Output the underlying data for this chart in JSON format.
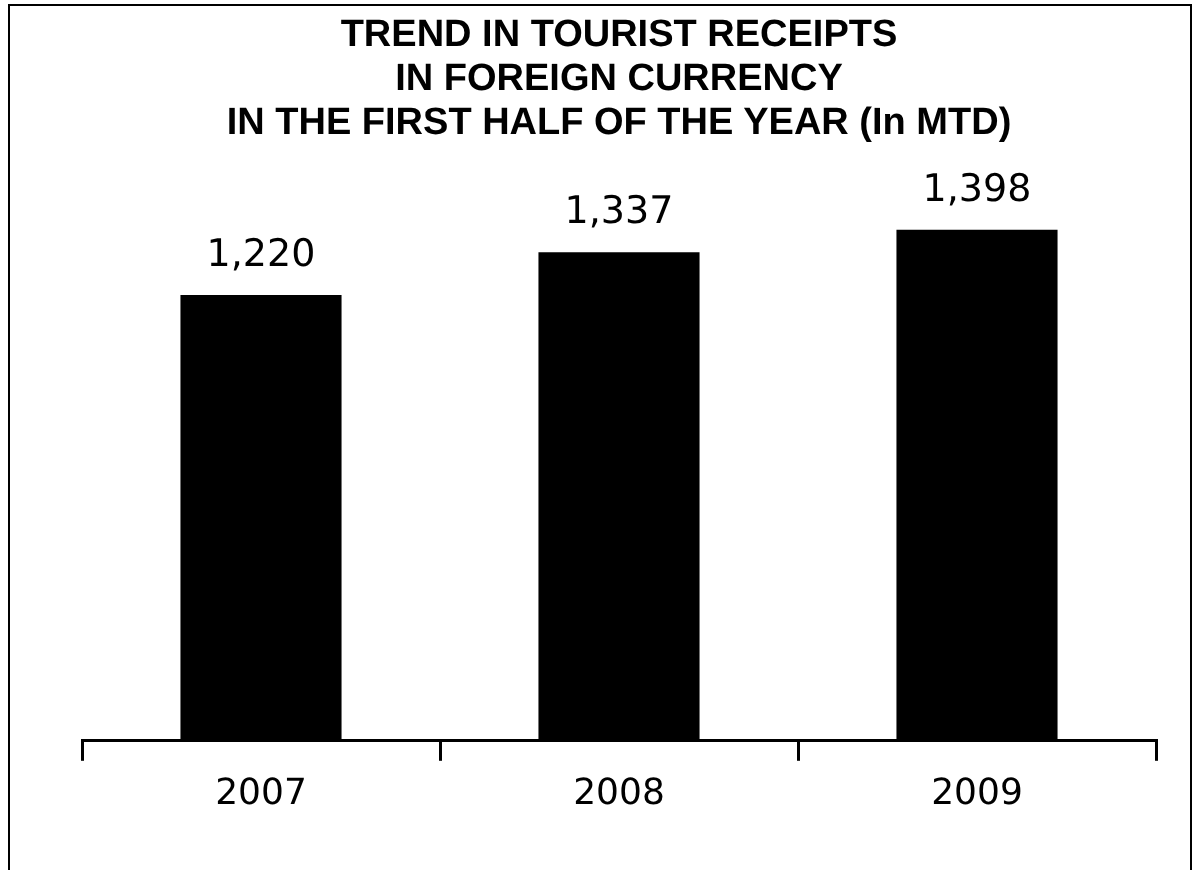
{
  "chart_data": {
    "type": "bar",
    "title": "TREND IN TOURIST RECEIPTS\nIN FOREIGN CURRENCY\nIN THE FIRST HALF OF THE YEAR (In MTD)",
    "categories": [
      "2007",
      "2008",
      "2009"
    ],
    "values": [
      1220,
      1337,
      1398
    ],
    "value_labels": [
      "1,220",
      "1,337",
      "1,398"
    ],
    "color": "#000000",
    "grid": false,
    "legend": false,
    "tick_labels": "x"
  }
}
